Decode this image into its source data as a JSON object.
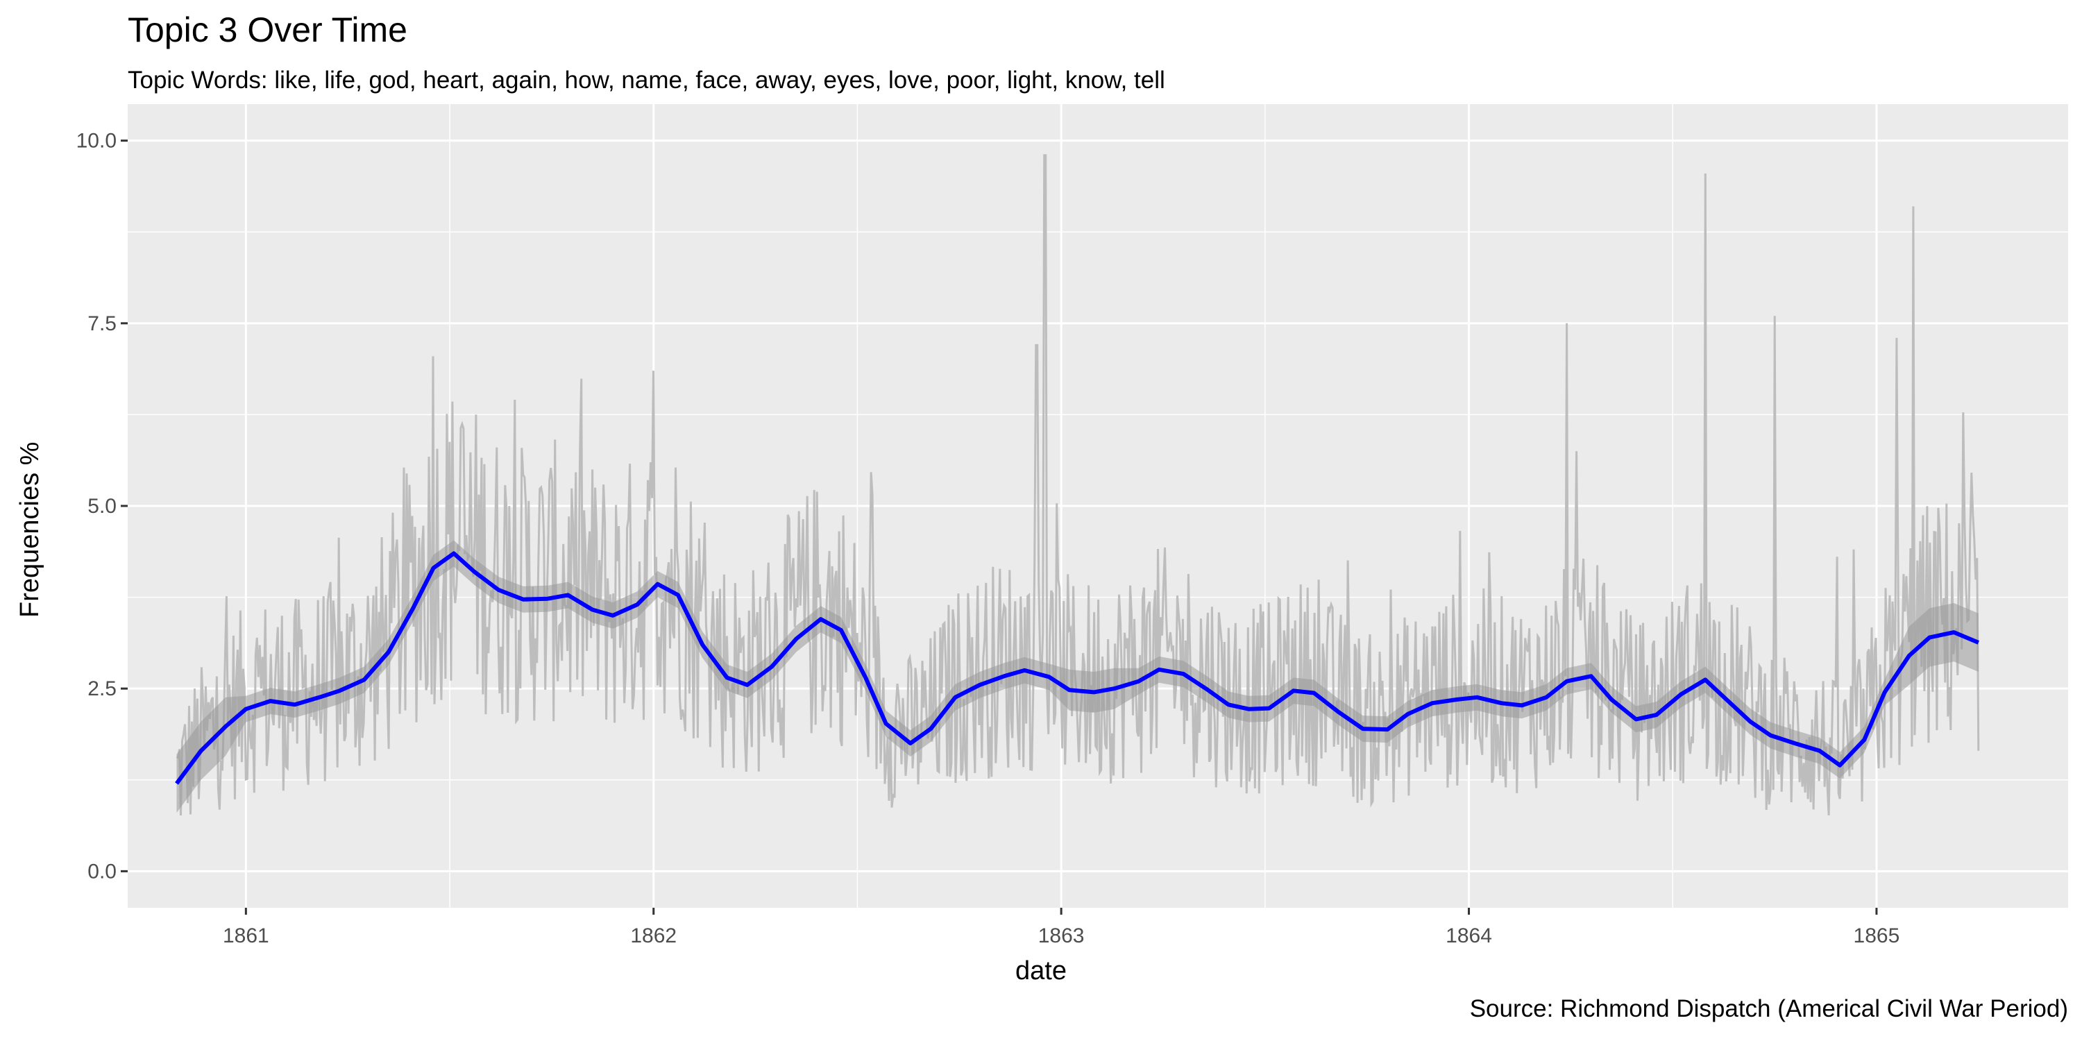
{
  "chart_data": {
    "type": "line",
    "title": "Topic 3 Over Time",
    "subtitle": "Topic Words: like, life, god, heart, again, how, name, face, away, eyes, love, poor, light, know, tell",
    "xlabel": "date",
    "ylabel": "Frequencies %",
    "caption": "Source: Richmond Dispatch (Americal Civil War Period)",
    "xlim": [
      1860.71,
      1865.47
    ],
    "ylim": [
      -0.5,
      10.5
    ],
    "x_ticks": [
      1861,
      1862,
      1863,
      1864,
      1865
    ],
    "x_tick_labels": [
      "1861",
      "1862",
      "1863",
      "1864",
      "1865"
    ],
    "y_ticks": [
      0.0,
      2.5,
      5.0,
      7.5,
      10.0
    ],
    "y_tick_labels": [
      "0.0",
      "2.5",
      "5.0",
      "7.5",
      "10.0"
    ],
    "grid": true,
    "colors": {
      "panel_background": "#ebebeb",
      "grid": "#ffffff",
      "raw_series": "#bdbdbd",
      "smooth_band": "#999999",
      "smooth_line": "#0000ff"
    },
    "series": [
      {
        "kind": "smoothed trend",
        "x": [
          1860.83,
          1860.89,
          1860.95,
          1861.0,
          1861.06,
          1861.12,
          1861.18,
          1861.23,
          1861.29,
          1861.35,
          1861.41,
          1861.46,
          1861.51,
          1861.56,
          1861.62,
          1861.68,
          1861.74,
          1861.79,
          1861.85,
          1861.9,
          1861.96,
          1862.01,
          1862.06,
          1862.12,
          1862.18,
          1862.23,
          1862.29,
          1862.35,
          1862.41,
          1862.46,
          1862.52,
          1862.57,
          1862.63,
          1862.68,
          1862.74,
          1862.8,
          1862.86,
          1862.91,
          1862.97,
          1863.02,
          1863.08,
          1863.13,
          1863.19,
          1863.24,
          1863.3,
          1863.36,
          1863.41,
          1863.46,
          1863.51,
          1863.57,
          1863.62,
          1863.68,
          1863.74,
          1863.8,
          1863.85,
          1863.91,
          1863.97,
          1864.02,
          1864.08,
          1864.13,
          1864.19,
          1864.24,
          1864.3,
          1864.35,
          1864.41,
          1864.46,
          1864.52,
          1864.58,
          1864.63,
          1864.69,
          1864.74,
          1864.8,
          1864.86,
          1864.91,
          1864.97,
          1865.02,
          1865.08,
          1865.13,
          1865.19,
          1865.25
        ],
        "values": [
          1.2,
          1.65,
          1.98,
          2.22,
          2.33,
          2.28,
          2.38,
          2.47,
          2.62,
          3.0,
          3.6,
          4.15,
          4.35,
          4.1,
          3.85,
          3.72,
          3.73,
          3.78,
          3.58,
          3.5,
          3.65,
          3.93,
          3.78,
          3.1,
          2.65,
          2.55,
          2.8,
          3.18,
          3.45,
          3.3,
          2.65,
          2.02,
          1.75,
          1.95,
          2.38,
          2.55,
          2.67,
          2.75,
          2.66,
          2.48,
          2.45,
          2.5,
          2.6,
          2.76,
          2.7,
          2.48,
          2.28,
          2.22,
          2.23,
          2.47,
          2.44,
          2.18,
          1.95,
          1.94,
          2.15,
          2.3,
          2.35,
          2.38,
          2.3,
          2.27,
          2.38,
          2.6,
          2.67,
          2.35,
          2.08,
          2.14,
          2.42,
          2.62,
          2.36,
          2.05,
          1.86,
          1.75,
          1.65,
          1.45,
          1.8,
          2.45,
          2.95,
          3.2,
          3.27,
          3.13
        ]
      }
    ]
  }
}
